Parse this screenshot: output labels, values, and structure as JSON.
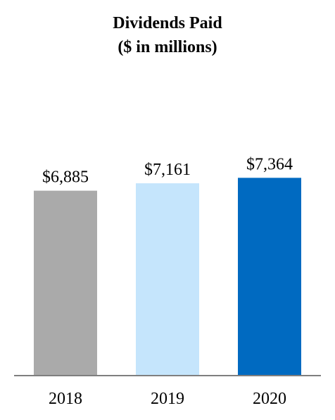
{
  "chart_data": {
    "type": "bar",
    "title": "Dividends Paid",
    "subtitle": "($ in millions)",
    "categories": [
      "2018",
      "2019",
      "2020"
    ],
    "values": [
      6885,
      7161,
      7364
    ],
    "value_labels": [
      "$6,885",
      "$7,161",
      "$7,364"
    ],
    "bar_colors": [
      "#aaaaaa",
      "#c5e5fc",
      "#006ac1"
    ],
    "axis_color": "#7f7f7f",
    "xlabel": "",
    "ylabel": "",
    "ylim": [
      0,
      9000
    ],
    "grid": false,
    "legend": "none"
  }
}
